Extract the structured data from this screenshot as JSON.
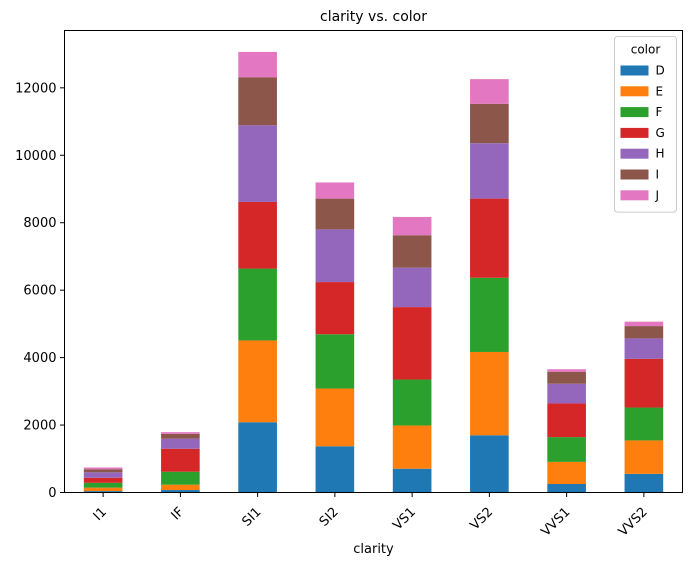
{
  "chart_data": {
    "type": "bar",
    "stacked": true,
    "title": "clarity vs. color",
    "xlabel": "clarity",
    "ylabel": "",
    "ylim": [
      0,
      13700
    ],
    "yticks": [
      0,
      2000,
      4000,
      6000,
      8000,
      10000,
      12000
    ],
    "grid": false,
    "legend": {
      "title": "color",
      "placement": "top-right"
    },
    "categories": [
      "I1",
      "IF",
      "SI1",
      "SI2",
      "VS1",
      "VS2",
      "VVS1",
      "VVS2"
    ],
    "series": [
      {
        "name": "D",
        "color": "#1f77b4",
        "values": [
          42,
          73,
          2083,
          1370,
          705,
          1697,
          252,
          553
        ]
      },
      {
        "name": "E",
        "color": "#ff7f0e",
        "values": [
          102,
          158,
          2426,
          1713,
          1281,
          2470,
          656,
          991
        ]
      },
      {
        "name": "F",
        "color": "#2ca02c",
        "values": [
          143,
          385,
          2131,
          1609,
          1364,
          2201,
          734,
          975
        ]
      },
      {
        "name": "G",
        "color": "#d62728",
        "values": [
          150,
          681,
          1976,
          1548,
          2148,
          2347,
          999,
          1443
        ]
      },
      {
        "name": "H",
        "color": "#9467bd",
        "values": [
          162,
          299,
          2275,
          1563,
          1169,
          1643,
          585,
          608
        ]
      },
      {
        "name": "I",
        "color": "#8c564b",
        "values": [
          92,
          143,
          1424,
          912,
          962,
          1169,
          355,
          365
        ]
      },
      {
        "name": "J",
        "color": "#e377c2",
        "values": [
          50,
          51,
          750,
          479,
          542,
          731,
          74,
          131
        ]
      }
    ]
  }
}
